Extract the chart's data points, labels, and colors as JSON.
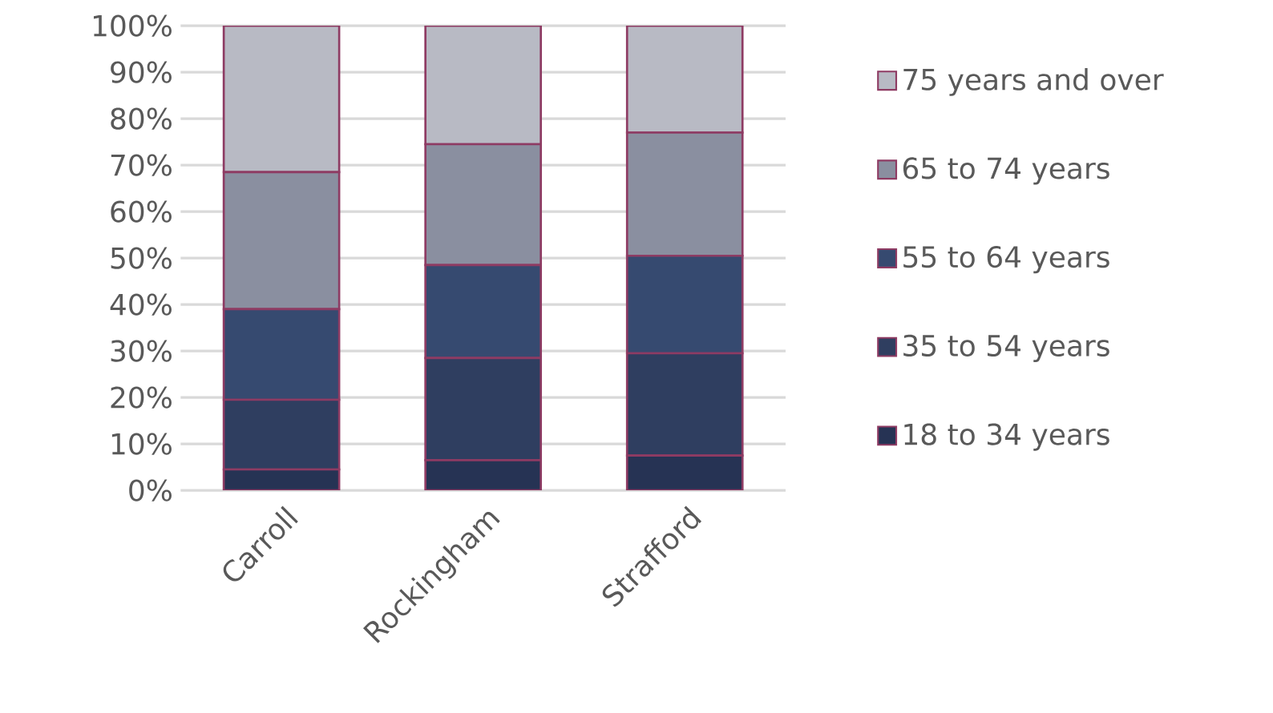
{
  "chart_data": {
    "type": "bar",
    "stacked": true,
    "categories": [
      "Carroll",
      "Rockingham",
      "Strafford"
    ],
    "series": [
      {
        "name": "18 to 34 years",
        "color": "#263354",
        "values": [
          4.5,
          6.5,
          7.5
        ]
      },
      {
        "name": "35 to 54 years",
        "color": "#2f3e60",
        "values": [
          15,
          22,
          22
        ]
      },
      {
        "name": "55 to 64 years",
        "color": "#364a70",
        "values": [
          19.5,
          20,
          21
        ]
      },
      {
        "name": "65 to 74 years",
        "color": "#8a8fa0",
        "values": [
          29.5,
          26,
          26.5
        ]
      },
      {
        "name": "75 years and over",
        "color": "#b8bac4",
        "values": [
          31.5,
          25.5,
          23
        ]
      }
    ],
    "ylim": [
      0,
      100
    ],
    "yticks": [
      {
        "value": 0,
        "label": "0%"
      },
      {
        "value": 10,
        "label": "10%"
      },
      {
        "value": 20,
        "label": "20%"
      },
      {
        "value": 30,
        "label": "30%"
      },
      {
        "value": 40,
        "label": "40%"
      },
      {
        "value": 50,
        "label": "50%"
      },
      {
        "value": 60,
        "label": "60%"
      },
      {
        "value": 70,
        "label": "70%"
      },
      {
        "value": 80,
        "label": "80%"
      },
      {
        "value": 90,
        "label": "90%"
      },
      {
        "value": 100,
        "label": "100%"
      }
    ],
    "grid": "y",
    "legend": "right"
  }
}
